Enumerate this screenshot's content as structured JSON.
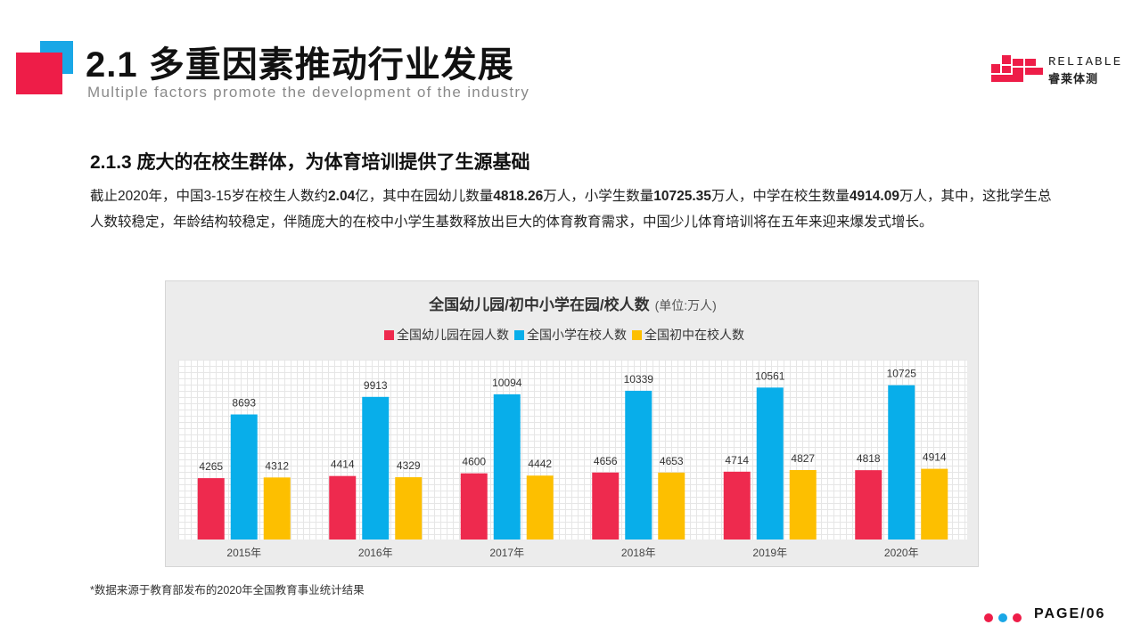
{
  "header": {
    "title": "2.1 多重因素推动行业发展",
    "subtitle": "Multiple factors promote the development of the industry"
  },
  "logo": {
    "en": "RELIABLE",
    "cn": "睿莱体测"
  },
  "section": {
    "title": "2.1.3 庞大的在校生群体，为体育培训提供了生源基础",
    "paragraph": [
      {
        "text": "截止2020年，中国3-15岁在校生人数约",
        "bold": false
      },
      {
        "text": "2.04",
        "bold": true
      },
      {
        "text": "亿，其中在园幼儿数量",
        "bold": false
      },
      {
        "text": "4818.26",
        "bold": true
      },
      {
        "text": "万人，小学生数量",
        "bold": false
      },
      {
        "text": "10725.35",
        "bold": true
      },
      {
        "text": "万人，中学在校生数量",
        "bold": false
      },
      {
        "text": "4914.09",
        "bold": true
      },
      {
        "text": "万人，其中，这批学生总人数较稳定，年龄结构较稳定，伴随庞大的在校中小学生基数释放出巨大的体育教育需求，中国少儿体育培训将在五年来迎来爆发式增长。",
        "bold": false
      }
    ]
  },
  "chart_data": {
    "type": "bar",
    "title": "全国幼儿园/初中小学在园/校人数",
    "unit": "(单位:万人)",
    "categories": [
      "2015年",
      "2016年",
      "2017年",
      "2018年",
      "2019年",
      "2020年"
    ],
    "series": [
      {
        "name": "全国幼儿园在园人数",
        "color": "#ee2a4e",
        "values": [
          4265,
          4414,
          4600,
          4656,
          4714,
          4818
        ]
      },
      {
        "name": "全国小学在校人数",
        "color": "#08aeea",
        "values": [
          8693,
          9913,
          10094,
          10339,
          10561,
          10725
        ]
      },
      {
        "name": "全国初中在校人数",
        "color": "#fdbf00",
        "values": [
          4312,
          4329,
          4442,
          4653,
          4827,
          4914
        ]
      }
    ],
    "ylim": [
      0,
      12500
    ],
    "grid": true,
    "legend": "top-center"
  },
  "footnote": "*数据来源于教育部发布的2020年全国教育事业统计结果",
  "footer": {
    "page_label": "PAGE/06",
    "dot_colors": [
      "#ee1d48",
      "#1aa7e6",
      "#ee1d48"
    ]
  }
}
